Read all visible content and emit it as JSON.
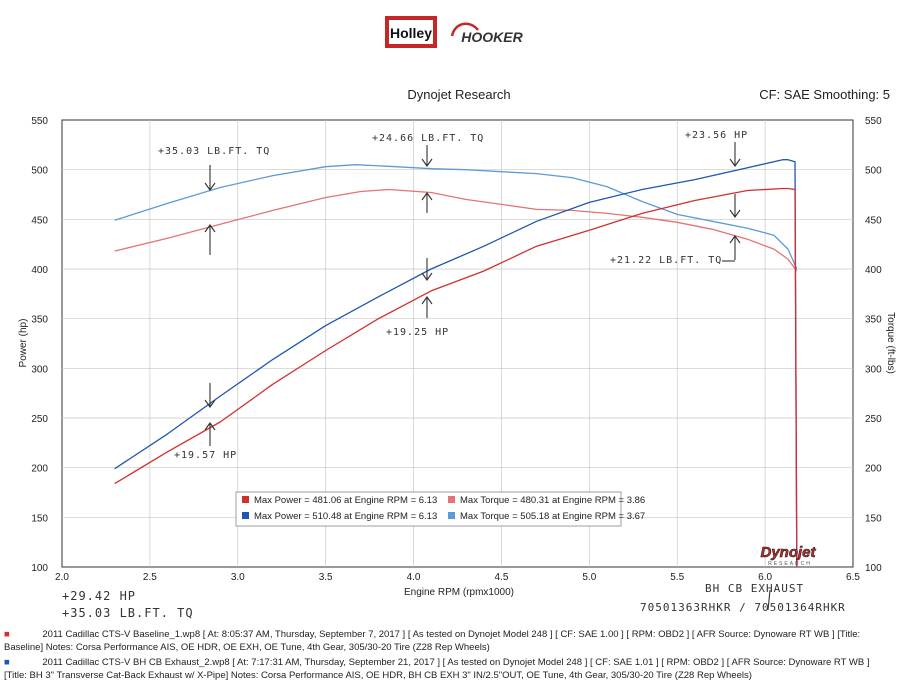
{
  "brand": {
    "holley": "Holley",
    "hooker": "HOOKER",
    "dynojet": "Dynojet",
    "dynojet_sub": "RESEARCH"
  },
  "header": {
    "title": "Dynojet Research",
    "cf": "CF: SAE Smoothing: 5"
  },
  "colors": {
    "baseline_power": "#d32f2f",
    "baseline_torque": "#e57373",
    "bh_power": "#1f56b0",
    "bh_torque": "#5a9bd8"
  },
  "chart_data": {
    "type": "line",
    "xlabel": "Engine RPM (rpmx1000)",
    "ylabel_left": "Power (hp)",
    "ylabel_right": "Torque (ft-lbs)",
    "xlim": [
      2.0,
      6.5
    ],
    "ylim": [
      100,
      550
    ],
    "x_ticks": [
      "2.0",
      "2.5",
      "3.0",
      "3.5",
      "4.0",
      "4.5",
      "5.0",
      "5.5",
      "6.0",
      "6.5"
    ],
    "y_ticks": [
      "100",
      "150",
      "200",
      "250",
      "300",
      "350",
      "400",
      "450",
      "500",
      "550"
    ],
    "grid": true,
    "series": [
      {
        "key": "bh_torque",
        "color": "#5a9bd8",
        "x": [
          2.3,
          2.6,
          2.9,
          3.2,
          3.5,
          3.67,
          3.9,
          4.1,
          4.3,
          4.5,
          4.7,
          4.9,
          5.1,
          5.3,
          5.5,
          5.7,
          5.9,
          6.05,
          6.13,
          6.18
        ],
        "y": [
          449,
          466,
          482,
          494,
          503,
          505,
          503,
          501,
          500,
          498,
          496,
          492,
          483,
          468,
          455,
          448,
          441,
          434,
          420,
          400
        ]
      },
      {
        "key": "baseline_torque",
        "color": "#e57373",
        "x": [
          2.3,
          2.6,
          2.9,
          3.2,
          3.5,
          3.7,
          3.86,
          4.1,
          4.3,
          4.5,
          4.7,
          4.9,
          5.1,
          5.3,
          5.5,
          5.7,
          5.9,
          6.05,
          6.13,
          6.18
        ],
        "y": [
          418,
          431,
          445,
          459,
          472,
          478,
          480,
          477,
          470,
          465,
          460,
          459,
          456,
          452,
          447,
          440,
          430,
          420,
          410,
          398
        ]
      },
      {
        "key": "bh_power",
        "color": "#1f56b0",
        "x": [
          2.3,
          2.6,
          2.9,
          3.2,
          3.5,
          3.8,
          4.1,
          4.4,
          4.7,
          5.0,
          5.3,
          5.6,
          5.9,
          6.1,
          6.13,
          6.17,
          6.18
        ],
        "y": [
          199,
          234,
          272,
          309,
          343,
          372,
          400,
          423,
          448,
          467,
          480,
          490,
          502,
          510,
          510,
          508,
          100
        ]
      },
      {
        "key": "baseline_power",
        "color": "#d32f2f",
        "x": [
          2.3,
          2.6,
          2.9,
          3.2,
          3.5,
          3.8,
          4.1,
          4.4,
          4.7,
          5.0,
          5.3,
          5.6,
          5.9,
          6.1,
          6.13,
          6.17,
          6.18
        ],
        "y": [
          184,
          216,
          246,
          284,
          318,
          350,
          378,
          398,
          423,
          439,
          456,
          469,
          479,
          481,
          481,
          480,
          100
        ]
      }
    ],
    "legend": [
      {
        "text": "Max Power = 481.06 at Engine RPM = 6.13",
        "color": "#d32f2f"
      },
      {
        "text": "Max Torque = 480.31 at Engine RPM = 3.86",
        "color": "#e57373"
      },
      {
        "text": "Max Power = 510.48 at Engine RPM = 6.13",
        "color": "#1f56b0"
      },
      {
        "text": "Max Torque = 505.18 at Engine RPM = 3.67",
        "color": "#5a9bd8"
      }
    ],
    "annotations": {
      "tq_left": "+35.03 LB.FT. TQ",
      "tq_mid": "+24.66 LB.FT. TQ",
      "hp_top": "+23.56 HP",
      "tq_right": "+21.22 LB.FT. TQ",
      "hp_mid": "+19.25 HP",
      "hp_low": "+19.57 HP",
      "bottom_hp": "+29.42 HP",
      "bottom_tq": "+35.03 LB.FT. TQ",
      "exhaust": "BH CB EXHAUST",
      "part_numbers": "70501363RHKR / 70501364RHKR"
    }
  },
  "footer": {
    "line1": "2011 Cadillac CTS-V Baseline_1.wp8 [ At: 8:05:37 AM, Thursday, September 7, 2017 ] [ As tested on Dynojet Model 248 ] [ CF: SAE 1.00 ] [ RPM: OBD2 ] [ AFR Source: Dynoware RT WB ] [Title:",
    "line2": "Baseline]  Notes: Corsa Performance AIS, OE HDR, OE EXH, OE Tune, 4th Gear, 305/30-20 Tire (Z28 Rep Wheels)",
    "line3": "2011 Cadillac CTS-V BH CB Exhaust_2.wp8 [ At: 7:17:31 AM, Thursday, September 21, 2017 ] [ As tested on Dynojet Model 248 ] [ CF: SAE 1.01 ] [ RPM: OBD2 ] [ AFR Source: Dynoware RT WB ]",
    "line4": "[Title: BH 3\" Transverse Cat-Back Exhaust w/ X-Pipe]  Notes: Corsa Performance AIS, OE HDR, BH CB EXH 3\" IN/2.5\"OUT, OE Tune, 4th Gear, 305/30-20 Tire (Z28 Rep Wheels)"
  }
}
